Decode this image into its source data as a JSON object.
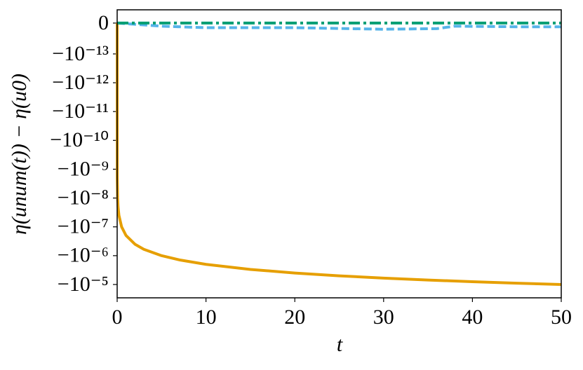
{
  "chart_data": {
    "type": "line",
    "xlabel": "t",
    "ylabel": "η(unum(t)) − η(u0)",
    "yscale": "symlog",
    "linthresh": 1e-13,
    "linscale": 1.07,
    "xlim": [
      0,
      50
    ],
    "xticks": [
      0,
      10,
      20,
      30,
      40,
      50
    ],
    "ylim": [
      -2.9e-05,
      4.3e-14
    ],
    "yticks": [
      0,
      {
        "value": -1e-13,
        "label": "−10⁻¹³"
      },
      {
        "value": -1e-12,
        "label": "−10⁻¹²"
      },
      {
        "value": -1e-11,
        "label": "−10⁻¹¹"
      },
      {
        "value": -1e-10,
        "label": "−10⁻¹⁰"
      },
      {
        "value": -1e-09,
        "label": "−10⁻⁹"
      },
      {
        "value": -1e-08,
        "label": "−10⁻⁸"
      },
      {
        "value": -1e-07,
        "label": "−10⁻⁷"
      },
      {
        "value": -1e-06,
        "label": "−10⁻⁶"
      },
      {
        "value": -1e-05,
        "label": "−10⁻⁵"
      }
    ],
    "grid": false,
    "series": [
      {
        "color": "#e69f00",
        "style": "solid",
        "x": [
          0,
          0.01,
          0.05,
          0.1,
          0.2,
          0.5,
          1,
          2,
          3,
          5,
          7,
          10,
          15,
          20,
          25,
          30,
          35,
          40,
          45,
          50
        ],
        "values": [
          0,
          -2e-09,
          -1e-08,
          -2e-08,
          -4e-08,
          -1e-07,
          -2e-07,
          -4e-07,
          -6e-07,
          -1e-06,
          -1.4e-06,
          -2e-06,
          -3e-06,
          -4e-06,
          -5e-06,
          -6e-06,
          -7e-06,
          -8e-06,
          -9e-06,
          -1e-05
        ]
      },
      {
        "color": "#56b4e9",
        "style": "dashed",
        "x": [
          0,
          5,
          10,
          20,
          30,
          36,
          38,
          45,
          50
        ],
        "values": [
          0,
          -1e-14,
          -1.5e-14,
          -1.5e-14,
          -2e-14,
          -1.8e-14,
          -1e-14,
          -1.2e-14,
          -1.2e-14
        ]
      },
      {
        "color": "#009e73",
        "style": "dashdot",
        "x": [
          0,
          50
        ],
        "values": [
          0,
          0
        ]
      }
    ]
  }
}
